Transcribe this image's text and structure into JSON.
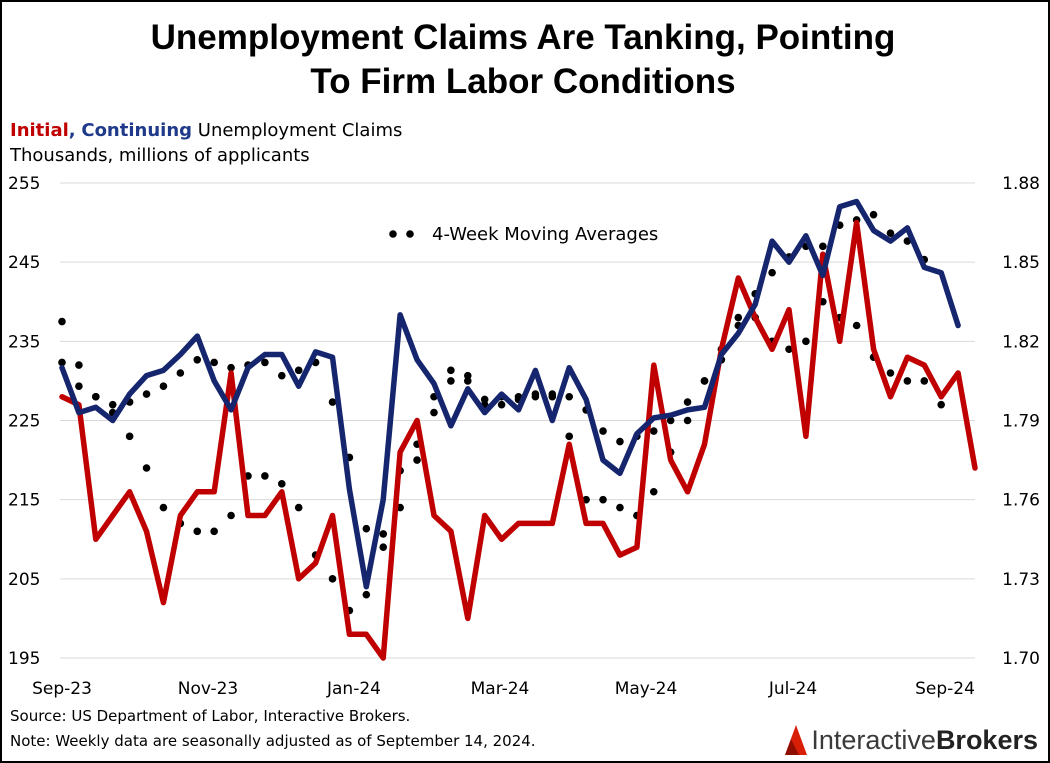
{
  "title": {
    "line1": "Unemployment Claims Are Tanking, Pointing",
    "line2": "To Firm Labor Conditions"
  },
  "subtitle": {
    "initial": "Initial",
    "comma": ",",
    "continuing": "Continuing",
    "rest": "Unemployment Claims",
    "units": "Thousands, millions of applicants"
  },
  "legend": {
    "moving_avg": "4-Week Moving Averages"
  },
  "footer": {
    "source": "Source: US Department of Labor, Interactive Brokers.",
    "note": "Note: Weekly data are seasonally adjusted as of September 14, 2024."
  },
  "logo": {
    "part1": "Interactive",
    "part2": "Brokers"
  },
  "colors": {
    "initial": "#c00000",
    "continuing": "#16266e",
    "moving_avg": "#000000"
  },
  "chart_data": {
    "type": "line",
    "x_ticks": [
      "Sep-23",
      "Nov-23",
      "Jan-24",
      "Mar-24",
      "May-24",
      "Jul-24",
      "Sep-24"
    ],
    "y_left": {
      "ticks": [
        "255",
        "245",
        "235",
        "225",
        "215",
        "205",
        "195"
      ],
      "range": [
        195,
        255
      ]
    },
    "y_right": {
      "ticks": [
        "1.88",
        "1.85",
        "1.82",
        "1.79",
        "1.76",
        "1.73",
        "1.70"
      ],
      "range": [
        1.7,
        1.88
      ]
    },
    "grid": true,
    "moving_average_style": "dotted",
    "series": [
      {
        "name": "Initial",
        "axis": "left",
        "values": [
          228,
          227,
          210,
          213,
          216,
          211,
          202,
          213,
          216,
          216,
          231,
          213,
          213,
          216,
          205,
          207,
          213,
          198,
          198,
          195,
          221,
          225,
          213,
          211,
          200,
          213,
          210,
          212,
          212,
          212,
          222,
          212,
          212,
          208,
          209,
          232,
          220,
          216,
          222,
          234,
          243,
          238,
          234,
          239,
          223,
          246,
          235,
          250,
          234,
          228,
          233,
          232,
          228,
          231,
          219
        ]
      },
      {
        "name": "Continuing",
        "axis": "right",
        "values": [
          1.81,
          1.793,
          1.795,
          1.79,
          1.8,
          1.807,
          1.809,
          1.815,
          1.822,
          1.805,
          1.794,
          1.81,
          1.815,
          1.815,
          1.803,
          1.816,
          1.814,
          1.764,
          1.727,
          1.76,
          1.83,
          1.813,
          1.804,
          1.788,
          1.802,
          1.793,
          1.8,
          1.794,
          1.809,
          1.79,
          1.81,
          1.798,
          1.775,
          1.77,
          1.785,
          1.791,
          1.792,
          1.794,
          1.795,
          1.815,
          1.823,
          1.834,
          1.858,
          1.85,
          1.86,
          1.845,
          1.871,
          1.873,
          1.862,
          1.858,
          1.863,
          1.848,
          1.846,
          1.826
        ]
      },
      {
        "name": "Initial 4-Week Moving Average",
        "axis": "left",
        "style": "dotted",
        "values": [
          237.5,
          232,
          228,
          226,
          223,
          219,
          214,
          212,
          211,
          211,
          213,
          218,
          218,
          217,
          214,
          208,
          205,
          201,
          203,
          209,
          214,
          220,
          226,
          230,
          230,
          227,
          227,
          228,
          228,
          228,
          223,
          215,
          215,
          214,
          213,
          216,
          221,
          225,
          230,
          234,
          238,
          238,
          235,
          234,
          235,
          240,
          238,
          237,
          233,
          231,
          230,
          230,
          227
        ]
      },
      {
        "name": "Continuing 4-Week Moving Average",
        "axis": "right",
        "style": "dotted",
        "values": [
          1.812,
          1.803,
          1.799,
          1.796,
          1.797,
          1.8,
          1.803,
          1.808,
          1.813,
          1.812,
          1.81,
          1.811,
          1.812,
          1.807,
          1.809,
          1.812,
          1.797,
          1.776,
          1.749,
          1.747,
          1.771,
          1.781,
          1.799,
          1.809,
          1.807,
          1.798,
          1.799,
          1.798,
          1.8,
          1.8,
          1.799,
          1.794,
          1.786,
          1.782,
          1.784,
          1.786,
          1.79,
          1.797,
          1.805,
          1.813,
          1.826,
          1.838,
          1.846,
          1.852,
          1.856,
          1.856,
          1.864,
          1.866,
          1.868,
          1.861,
          1.858,
          1.851
        ]
      }
    ]
  }
}
